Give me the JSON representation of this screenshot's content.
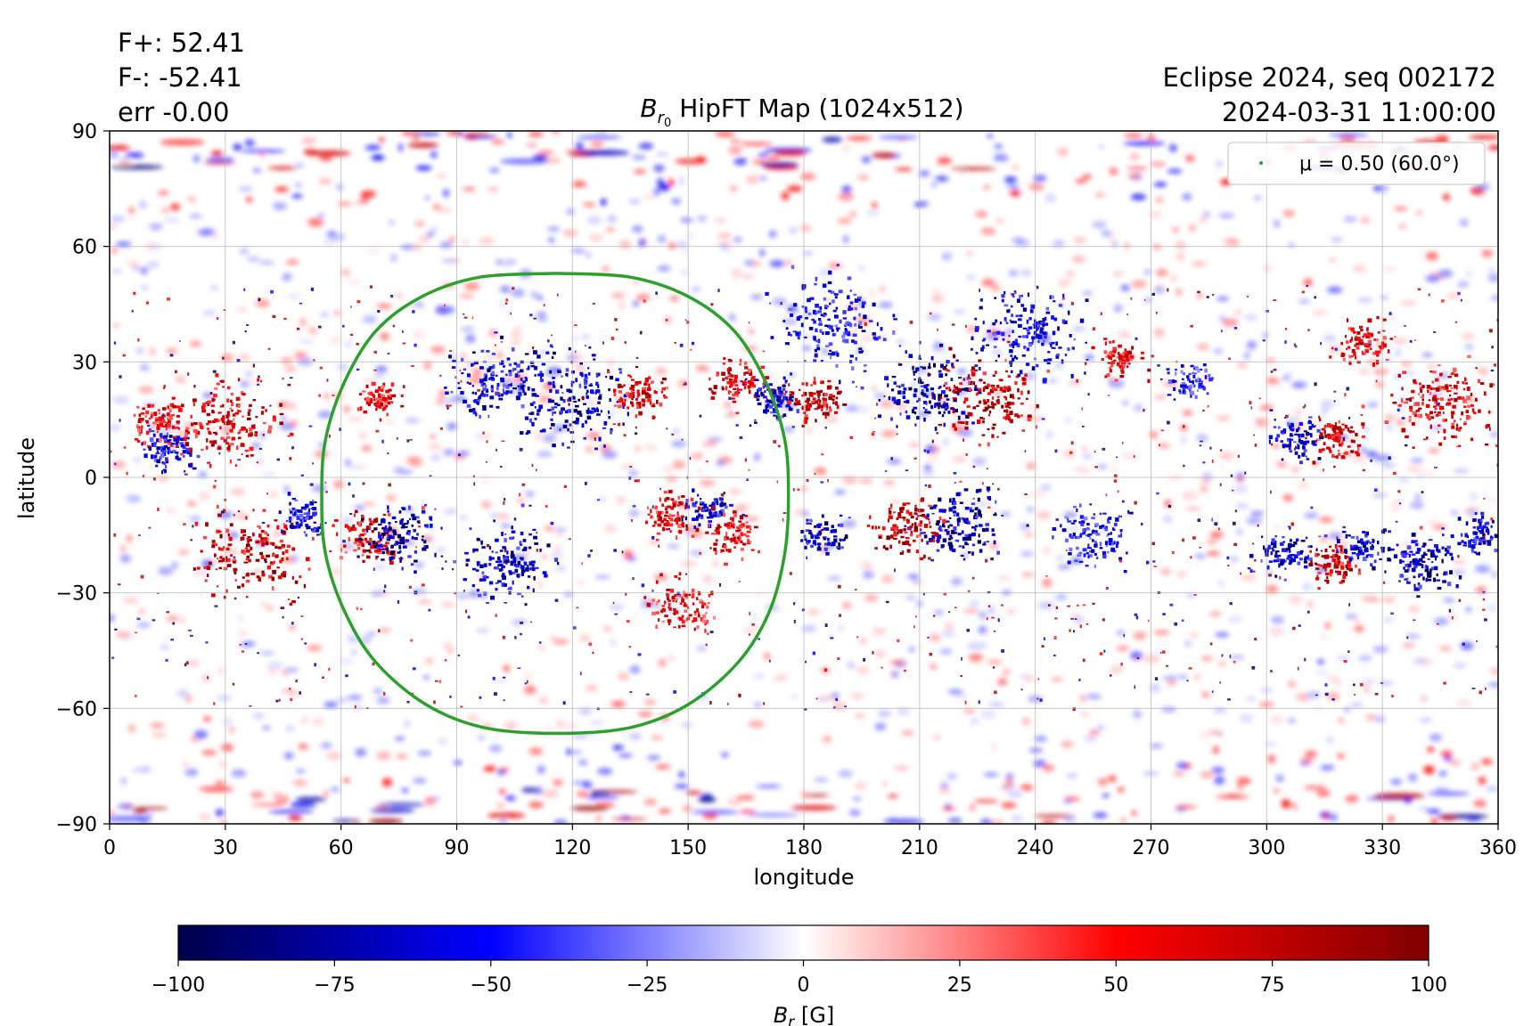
{
  "header": {
    "flux_plus": "F+: 52.41",
    "flux_minus": "F-: -52.41",
    "err": "err -0.00",
    "eclipse_seq": "Eclipse 2024, seq 002172",
    "datetime": "2024-03-31 11:00:00"
  },
  "chart_data": {
    "type": "heatmap",
    "title": {
      "sym": "B",
      "sub": "r",
      "subsub": "0",
      "rest": " HipFT Map (1024x512)"
    },
    "xlabel": "longitude",
    "ylabel": "latitude",
    "xlim": [
      0,
      360
    ],
    "ylim": [
      -90,
      90
    ],
    "xticks": [
      0,
      30,
      60,
      90,
      120,
      150,
      180,
      210,
      240,
      270,
      300,
      330,
      360
    ],
    "yticks": [
      90,
      60,
      30,
      0,
      -30,
      -60,
      -90
    ],
    "ytick_labels": [
      "90",
      "60",
      "30",
      "0",
      "−30",
      "−60",
      "−90"
    ],
    "grid": true,
    "resolution": "1024x512",
    "colormap": "seismic",
    "colormap_colors": [
      "#00004c",
      "#0000ff",
      "#ffffff",
      "#ff0000",
      "#800000"
    ],
    "clim": [
      -100,
      100
    ],
    "colorbar_ticks": [
      -100,
      -75,
      -50,
      -25,
      0,
      25,
      50,
      75,
      100
    ],
    "colorbar_tick_labels": [
      "−100",
      "−75",
      "−50",
      "−25",
      "0",
      "25",
      "50",
      "75",
      "100"
    ],
    "colorbar_label": {
      "sym": "B",
      "sub": "r",
      "unit": " [G]"
    },
    "legend": {
      "marker": "·",
      "label": "μ = 0.50 (60.0°)",
      "position": "upper right",
      "color": "#2ca02c"
    },
    "mu_contour": {
      "color": "#2ca02c",
      "center_longitude": 116,
      "points": [
        [
          116,
          53
        ],
        [
          135,
          52
        ],
        [
          150,
          47
        ],
        [
          162,
          38
        ],
        [
          170,
          25
        ],
        [
          175,
          10
        ],
        [
          176,
          -5
        ],
        [
          175,
          -20
        ],
        [
          171,
          -35
        ],
        [
          163,
          -48
        ],
        [
          150,
          -59
        ],
        [
          135,
          -65
        ],
        [
          116,
          -66.5
        ],
        [
          97,
          -65
        ],
        [
          82,
          -59
        ],
        [
          69,
          -48
        ],
        [
          61,
          -35
        ],
        [
          56,
          -20
        ],
        [
          55,
          -5
        ],
        [
          56,
          10
        ],
        [
          61,
          25
        ],
        [
          69,
          38
        ],
        [
          81,
          47
        ],
        [
          96,
          52
        ],
        [
          116,
          53
        ]
      ]
    },
    "active_regions": [
      {
        "lon": 30,
        "lat": 15,
        "polarity": "positive",
        "strength": 85,
        "size": 12
      },
      {
        "lon": 12,
        "lat": 15,
        "polarity": "positive",
        "strength": 70,
        "size": 6
      },
      {
        "lon": 15,
        "lat": 7,
        "polarity": "negative",
        "strength": 80,
        "size": 6
      },
      {
        "lon": 37,
        "lat": -20,
        "polarity": "positive",
        "strength": 95,
        "size": 12
      },
      {
        "lon": 50,
        "lat": -10,
        "polarity": "negative",
        "strength": 75,
        "size": 5
      },
      {
        "lon": 68,
        "lat": -15,
        "polarity": "positive",
        "strength": 80,
        "size": 7
      },
      {
        "lon": 75,
        "lat": -15,
        "polarity": "negative",
        "strength": 100,
        "size": 8
      },
      {
        "lon": 70,
        "lat": 20,
        "polarity": "positive",
        "strength": 75,
        "size": 5
      },
      {
        "lon": 100,
        "lat": 25,
        "polarity": "negative",
        "strength": 80,
        "size": 10
      },
      {
        "lon": 120,
        "lat": 20,
        "polarity": "negative",
        "strength": 90,
        "size": 12
      },
      {
        "lon": 138,
        "lat": 22,
        "polarity": "positive",
        "strength": 85,
        "size": 6
      },
      {
        "lon": 103,
        "lat": -22,
        "polarity": "negative",
        "strength": 85,
        "size": 10
      },
      {
        "lon": 145,
        "lat": -10,
        "polarity": "positive",
        "strength": 80,
        "size": 6
      },
      {
        "lon": 155,
        "lat": -8,
        "polarity": "negative",
        "strength": 80,
        "size": 5
      },
      {
        "lon": 162,
        "lat": -15,
        "polarity": "positive",
        "strength": 85,
        "size": 6
      },
      {
        "lon": 148,
        "lat": -33,
        "polarity": "positive",
        "strength": 70,
        "size": 7
      },
      {
        "lon": 163,
        "lat": 25,
        "polarity": "positive",
        "strength": 85,
        "size": 6
      },
      {
        "lon": 172,
        "lat": 20,
        "polarity": "negative",
        "strength": 80,
        "size": 6
      },
      {
        "lon": 183,
        "lat": 20,
        "polarity": "positive",
        "strength": 90,
        "size": 6
      },
      {
        "lon": 212,
        "lat": 22,
        "polarity": "negative",
        "strength": 100,
        "size": 10
      },
      {
        "lon": 227,
        "lat": 20,
        "polarity": "positive",
        "strength": 100,
        "size": 11
      },
      {
        "lon": 207,
        "lat": -13,
        "polarity": "positive",
        "strength": 100,
        "size": 8
      },
      {
        "lon": 220,
        "lat": -12,
        "polarity": "negative",
        "strength": 100,
        "size": 9
      },
      {
        "lon": 185,
        "lat": -15,
        "polarity": "negative",
        "strength": 85,
        "size": 5
      },
      {
        "lon": 187,
        "lat": 40,
        "polarity": "negative",
        "strength": 70,
        "size": 12
      },
      {
        "lon": 237,
        "lat": 38,
        "polarity": "negative",
        "strength": 75,
        "size": 12
      },
      {
        "lon": 262,
        "lat": 30,
        "polarity": "positive",
        "strength": 80,
        "size": 5
      },
      {
        "lon": 308,
        "lat": 10,
        "polarity": "negative",
        "strength": 80,
        "size": 6
      },
      {
        "lon": 318,
        "lat": 10,
        "polarity": "positive",
        "strength": 85,
        "size": 6
      },
      {
        "lon": 305,
        "lat": -20,
        "polarity": "negative",
        "strength": 90,
        "size": 6
      },
      {
        "lon": 318,
        "lat": -22,
        "polarity": "positive",
        "strength": 90,
        "size": 6
      },
      {
        "lon": 325,
        "lat": -18,
        "polarity": "negative",
        "strength": 85,
        "size": 5
      },
      {
        "lon": 340,
        "lat": -22,
        "polarity": "negative",
        "strength": 90,
        "size": 8
      },
      {
        "lon": 355,
        "lat": -15,
        "polarity": "negative",
        "strength": 85,
        "size": 5
      },
      {
        "lon": 345,
        "lat": 20,
        "polarity": "positive",
        "strength": 80,
        "size": 11
      },
      {
        "lon": 325,
        "lat": 35,
        "polarity": "positive",
        "strength": 75,
        "size": 6
      },
      {
        "lon": 255,
        "lat": -15,
        "polarity": "negative",
        "strength": 65,
        "size": 8
      },
      {
        "lon": 280,
        "lat": 25,
        "polarity": "negative",
        "strength": 60,
        "size": 5
      }
    ]
  }
}
